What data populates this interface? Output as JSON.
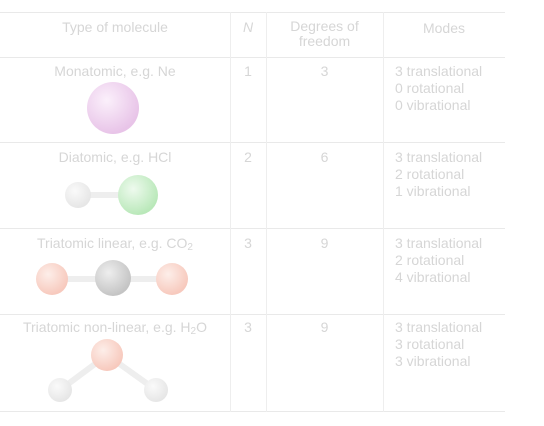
{
  "table": {
    "headers": {
      "type": "Type of molecule",
      "n": "N",
      "dof_line1": "Degrees of",
      "dof_line2": "freedom",
      "modes": "Modes"
    },
    "rows": [
      {
        "type_text": "Monatomic, e.g. Ne",
        "n": "1",
        "dof": "3",
        "modes": [
          "3 translational",
          "0 rotational",
          "0 vibrational"
        ]
      },
      {
        "type_text": "Diatomic, e.g. HCl",
        "n": "2",
        "dof": "6",
        "modes": [
          "3 translational",
          "2 rotational",
          "1 vibrational"
        ]
      },
      {
        "type_prefix": "Triatomic linear, e.g. CO",
        "type_sub": "2",
        "type_suffix": "",
        "n": "3",
        "dof": "9",
        "modes": [
          "3 translational",
          "2 rotational",
          "4 vibrational"
        ]
      },
      {
        "type_prefix": "Triatomic non-linear, e.g. H",
        "type_sub": "2",
        "type_suffix": "O",
        "n": "3",
        "dof": "9",
        "modes": [
          "3 translational",
          "3 rotational",
          "3 vibrational"
        ]
      }
    ]
  },
  "colors": {
    "text": "#d6d6d6",
    "rule": "#e9e9e9",
    "neon": "#e8c4e8",
    "hydrogen": "#e6e6e6",
    "chlorine": "#b9e8b9",
    "carbon": "#c4c4c4",
    "oxygen": "#f7c9bd"
  }
}
